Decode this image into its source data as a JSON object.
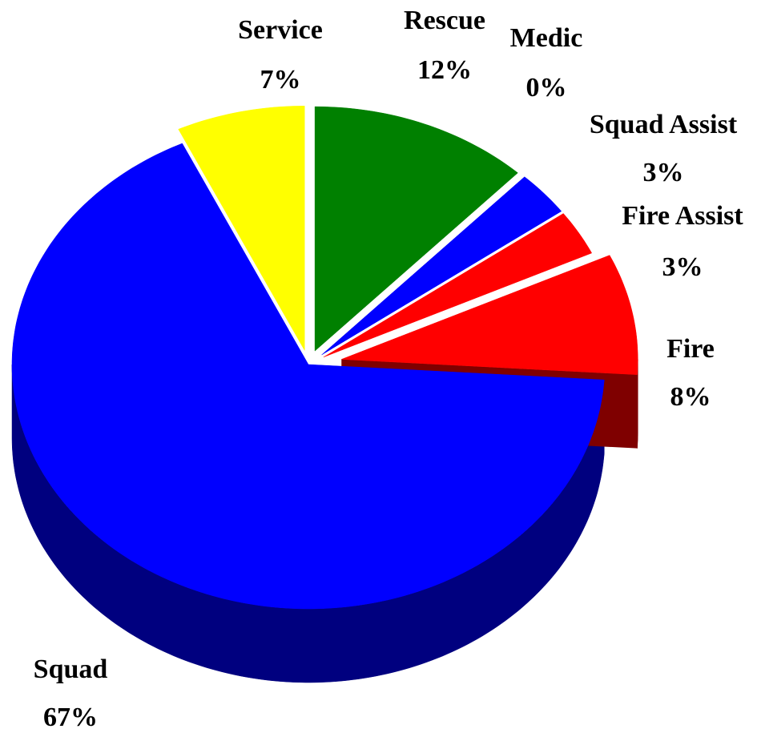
{
  "chart_data": {
    "type": "pie",
    "categories": [
      "Rescue",
      "Medic",
      "Squad Assist",
      "Fire Assist",
      "Fire",
      "Squad",
      "Service"
    ],
    "values": [
      12,
      0,
      3,
      3,
      8,
      67,
      7
    ],
    "value_labels": [
      "12%",
      "0%",
      "3%",
      "3%",
      "8%",
      "67%",
      "7%"
    ],
    "colors": [
      "#008000",
      "#ffffff",
      "#0000ff",
      "#ff0000",
      "#ff0000",
      "#0000ff",
      "#ffff00"
    ]
  }
}
